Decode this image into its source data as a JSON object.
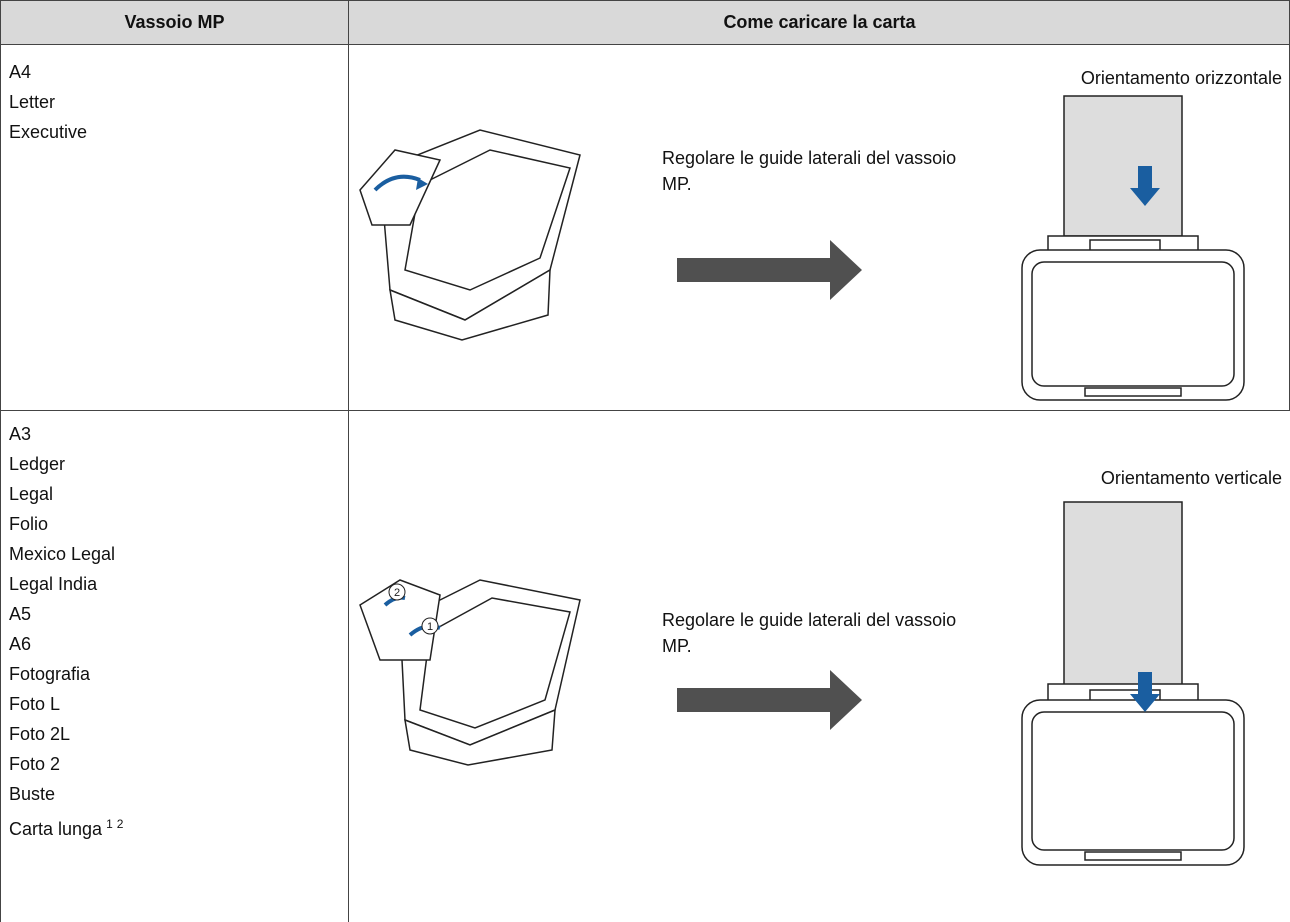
{
  "table": {
    "headers": [
      "Vassoio MP",
      "Come caricare la carta"
    ],
    "rows": [
      {
        "sizes": [
          "A4",
          "Letter",
          "Executive"
        ],
        "instruction": "Regolare le guide laterali del vassoio MP.",
        "orientation": "Orientamento orizzontale"
      },
      {
        "sizes": [
          "A3",
          "Ledger",
          "Legal",
          "Folio",
          "Mexico Legal",
          "Legal India",
          "A5",
          "A6",
          "Fotografia",
          "Foto L",
          "Foto 2L",
          "Foto 2",
          "Buste",
          "Carta lunga"
        ],
        "footnotes": [
          "1",
          "2"
        ],
        "callouts": [
          "1",
          "2"
        ],
        "instruction": "Regolare le guide laterali del vassoio MP.",
        "orientation": "Orientamento verticale"
      }
    ]
  }
}
